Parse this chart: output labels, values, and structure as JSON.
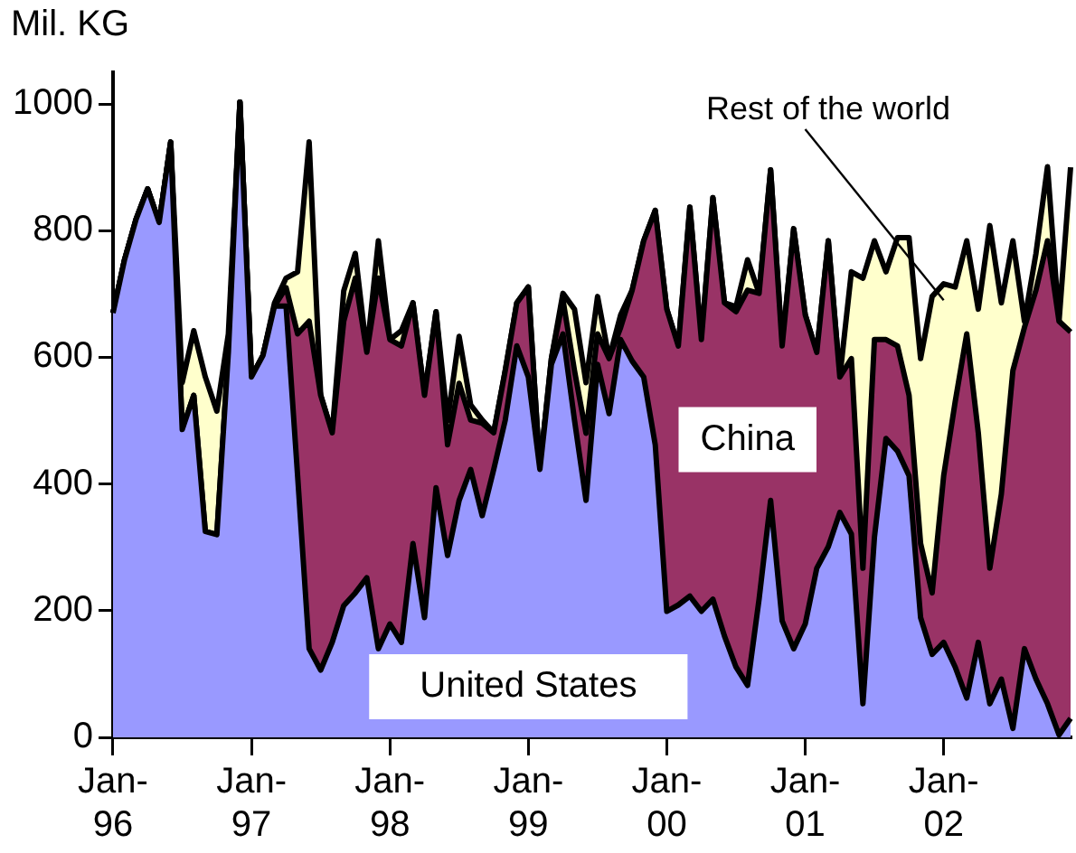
{
  "chart_data": {
    "type": "area",
    "stacked": true,
    "ylabel": "Mil. KG",
    "grid": false,
    "legend": false,
    "categories": [
      "Jan-96",
      null,
      null,
      null,
      null,
      null,
      null,
      null,
      null,
      null,
      null,
      null,
      "Jan-97",
      null,
      null,
      null,
      null,
      null,
      null,
      null,
      null,
      null,
      null,
      null,
      "Jan-98",
      null,
      null,
      null,
      null,
      null,
      null,
      null,
      null,
      null,
      null,
      null,
      "Jan-99",
      null,
      null,
      null,
      null,
      null,
      null,
      null,
      null,
      null,
      null,
      null,
      "Jan-00",
      null,
      null,
      null,
      null,
      null,
      null,
      null,
      null,
      null,
      null,
      null,
      "Jan-01",
      null,
      null,
      null,
      null,
      null,
      null,
      null,
      null,
      null,
      null,
      null,
      "Jan-02",
      null,
      null,
      null,
      null,
      null,
      null,
      null,
      null,
      null,
      null,
      null
    ],
    "ylim": [
      0,
      1050
    ],
    "yticks": [
      0,
      200,
      400,
      600,
      800,
      1000
    ],
    "series": [
      {
        "name": "United States",
        "color": "#9999ff",
        "values": [
          670,
          754,
          818,
          866,
          813,
          940,
          486,
          540,
          325,
          320,
          608,
          1003,
          569,
          603,
          681,
          681,
          413,
          140,
          106,
          150,
          208,
          228,
          252,
          140,
          179,
          150,
          306,
          189,
          394,
          287,
          374,
          423,
          350,
          423,
          501,
          618,
          569,
          423,
          589,
          637,
          501,
          374,
          589,
          511,
          628,
          594,
          569,
          462,
          199,
          209,
          223,
          199,
          218,
          160,
          111,
          82,
          218,
          374,
          184,
          140,
          179,
          267,
          301,
          355,
          321,
          53,
          316,
          472,
          452,
          413,
          189,
          131,
          150,
          111,
          62,
          150,
          53,
          92,
          14,
          140,
          92,
          53,
          4,
          30
        ]
      },
      {
        "name": "China",
        "color": "#993366",
        "values": [
          0,
          0,
          0,
          0,
          0,
          0,
          0,
          0,
          0,
          0,
          0,
          0,
          0,
          0,
          0,
          29,
          224,
          517,
          434,
          331,
          449,
          497,
          356,
          585,
          449,
          468,
          380,
          351,
          278,
          175,
          185,
          78,
          146,
          58,
          78,
          68,
          142,
          0,
          9,
          54,
          78,
          106,
          48,
          87,
          19,
          112,
          215,
          370,
          477,
          409,
          614,
          429,
          634,
          526,
          561,
          624,
          483,
          522,
          434,
          663,
          488,
          341,
          483,
          214,
          277,
          214,
          312,
          156,
          166,
          127,
          117,
          97,
          263,
          419,
          575,
          331,
          214,
          292,
          565,
          507,
          614,
          731,
          653,
          610
        ]
      },
      {
        "name": "Rest of the world",
        "color": "#ffffcc",
        "values": [
          0,
          0,
          0,
          0,
          0,
          0,
          74,
          102,
          244,
          195,
          29,
          0,
          0,
          0,
          5,
          15,
          98,
          283,
          0,
          0,
          48,
          39,
          0,
          59,
          0,
          24,
          0,
          0,
          0,
          38,
          74,
          24,
          5,
          0,
          0,
          0,
          0,
          0,
          0,
          10,
          97,
          80,
          59,
          0,
          20,
          0,
          0,
          0,
          0,
          0,
          0,
          0,
          0,
          0,
          8,
          48,
          0,
          0,
          0,
          0,
          0,
          0,
          0,
          0,
          137,
          458,
          156,
          107,
          171,
          249,
          292,
          468,
          303,
          181,
          147,
          195,
          541,
          302,
          205,
          10,
          58,
          117,
          0,
          260
        ]
      }
    ]
  }
}
